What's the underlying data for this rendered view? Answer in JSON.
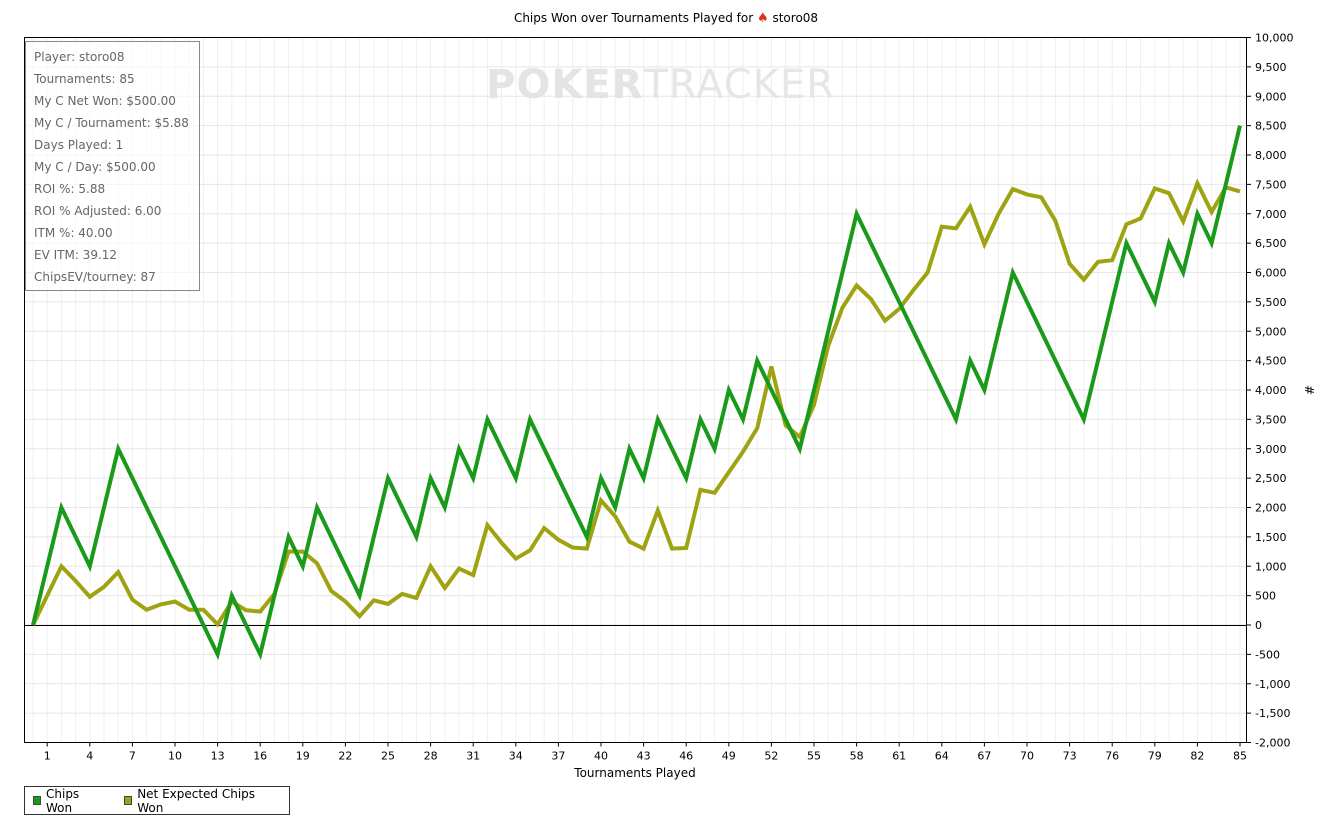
{
  "title_prefix": "Chips Won over Tournaments Played for",
  "title_player": "storo08",
  "watermark": {
    "strong": "POKER",
    "light": "TRACKER"
  },
  "stats": [
    "Player: storo08",
    "Tournaments: 85",
    "My C Net Won: $500.00",
    "My C / Tournament: $5.88",
    "Days Played: 1",
    "My C / Day: $500.00",
    "ROI %: 5.88",
    "ROI % Adjusted: 6.00",
    "ITM %: 40.00",
    "EV ITM: 39.12",
    "ChipsEV/tourney: 87"
  ],
  "legend": [
    {
      "label": "Chips Won",
      "color": "#1a9a1a"
    },
    {
      "label": "Net Expected Chips Won",
      "color": "#9fa312"
    }
  ],
  "chart_data": {
    "type": "line",
    "title": "Chips Won over Tournaments Played for storo08",
    "xlabel": "Tournaments Played",
    "ylabel": "#",
    "xlim": [
      0,
      85
    ],
    "ylim": [
      -2000,
      10000
    ],
    "grid": true,
    "legend_position": "bottom-left",
    "x_ticks": [
      "1",
      "4",
      "7",
      "10",
      "13",
      "16",
      "19",
      "22",
      "25",
      "28",
      "31",
      "34",
      "37",
      "40",
      "43",
      "46",
      "49",
      "52",
      "55",
      "58",
      "61",
      "64",
      "67",
      "70",
      "73",
      "76",
      "79",
      "82",
      "85"
    ],
    "y_ticks": [
      "-2,000",
      "-1,500",
      "-1,000",
      "-500",
      "0",
      "500",
      "1,000",
      "1,500",
      "2,000",
      "2,500",
      "3,000",
      "3,500",
      "4,000",
      "4,500",
      "5,000",
      "5,500",
      "6,000",
      "6,500",
      "7,000",
      "7,500",
      "8,000",
      "8,500",
      "9,000",
      "9,500",
      "10,000"
    ],
    "series": [
      {
        "name": "Chips Won",
        "color": "#1a9a1a",
        "points": [
          [
            0,
            0
          ],
          [
            2,
            2000
          ],
          [
            4,
            1000
          ],
          [
            6,
            3000
          ],
          [
            13,
            -500
          ],
          [
            14,
            500
          ],
          [
            16,
            -500
          ],
          [
            18,
            1500
          ],
          [
            19,
            1000
          ],
          [
            20,
            2000
          ],
          [
            23,
            500
          ],
          [
            25,
            2500
          ],
          [
            27,
            1500
          ],
          [
            28,
            2500
          ],
          [
            29,
            2000
          ],
          [
            30,
            3000
          ],
          [
            31,
            2500
          ],
          [
            32,
            3500
          ],
          [
            34,
            2500
          ],
          [
            35,
            3500
          ],
          [
            39,
            1500
          ],
          [
            40,
            2500
          ],
          [
            41,
            2000
          ],
          [
            42,
            3000
          ],
          [
            43,
            2500
          ],
          [
            44,
            3500
          ],
          [
            46,
            2500
          ],
          [
            47,
            3500
          ],
          [
            48,
            3000
          ],
          [
            49,
            4000
          ],
          [
            50,
            3500
          ],
          [
            51,
            4500
          ],
          [
            53,
            3500
          ],
          [
            54,
            3000
          ],
          [
            58,
            7000
          ],
          [
            65,
            3500
          ],
          [
            66,
            4500
          ],
          [
            67,
            4000
          ],
          [
            69,
            6000
          ],
          [
            74,
            3500
          ],
          [
            77,
            6500
          ],
          [
            79,
            5500
          ],
          [
            80,
            6500
          ],
          [
            81,
            6000
          ],
          [
            82,
            7000
          ],
          [
            83,
            6500
          ],
          [
            85,
            8500
          ]
        ]
      },
      {
        "name": "Net Expected Chips Won",
        "color": "#9fa312",
        "points": [
          [
            0,
            0
          ],
          [
            1,
            500
          ],
          [
            2,
            1000
          ],
          [
            3,
            750
          ],
          [
            4,
            480
          ],
          [
            5,
            650
          ],
          [
            6,
            900
          ],
          [
            7,
            430
          ],
          [
            8,
            260
          ],
          [
            9,
            350
          ],
          [
            10,
            400
          ],
          [
            11,
            260
          ],
          [
            12,
            260
          ],
          [
            13,
            10
          ],
          [
            14,
            400
          ],
          [
            15,
            250
          ],
          [
            16,
            230
          ],
          [
            17,
            530
          ],
          [
            18,
            1250
          ],
          [
            19,
            1250
          ],
          [
            20,
            1050
          ],
          [
            21,
            580
          ],
          [
            22,
            400
          ],
          [
            23,
            150
          ],
          [
            24,
            420
          ],
          [
            25,
            360
          ],
          [
            26,
            530
          ],
          [
            27,
            460
          ],
          [
            28,
            1000
          ],
          [
            29,
            630
          ],
          [
            30,
            960
          ],
          [
            31,
            850
          ],
          [
            32,
            1700
          ],
          [
            33,
            1400
          ],
          [
            34,
            1130
          ],
          [
            35,
            1270
          ],
          [
            36,
            1650
          ],
          [
            37,
            1450
          ],
          [
            38,
            1320
          ],
          [
            39,
            1300
          ],
          [
            40,
            2120
          ],
          [
            41,
            1850
          ],
          [
            42,
            1420
          ],
          [
            43,
            1300
          ],
          [
            44,
            1950
          ],
          [
            45,
            1300
          ],
          [
            46,
            1310
          ],
          [
            47,
            2300
          ],
          [
            48,
            2250
          ],
          [
            49,
            2600
          ],
          [
            50,
            2950
          ],
          [
            51,
            3350
          ],
          [
            52,
            4400
          ],
          [
            53,
            3400
          ],
          [
            54,
            3200
          ],
          [
            55,
            3750
          ],
          [
            56,
            4750
          ],
          [
            57,
            5400
          ],
          [
            58,
            5780
          ],
          [
            59,
            5550
          ],
          [
            60,
            5180
          ],
          [
            61,
            5380
          ],
          [
            62,
            5700
          ],
          [
            63,
            6000
          ],
          [
            64,
            6780
          ],
          [
            65,
            6750
          ],
          [
            66,
            7120
          ],
          [
            67,
            6480
          ],
          [
            68,
            7000
          ],
          [
            69,
            7420
          ],
          [
            70,
            7330
          ],
          [
            71,
            7280
          ],
          [
            72,
            6880
          ],
          [
            73,
            6150
          ],
          [
            74,
            5880
          ],
          [
            75,
            6180
          ],
          [
            76,
            6210
          ],
          [
            77,
            6820
          ],
          [
            78,
            6920
          ],
          [
            79,
            7430
          ],
          [
            80,
            7350
          ],
          [
            81,
            6870
          ],
          [
            82,
            7520
          ],
          [
            83,
            7030
          ],
          [
            84,
            7450
          ],
          [
            85,
            7380
          ]
        ]
      }
    ]
  }
}
